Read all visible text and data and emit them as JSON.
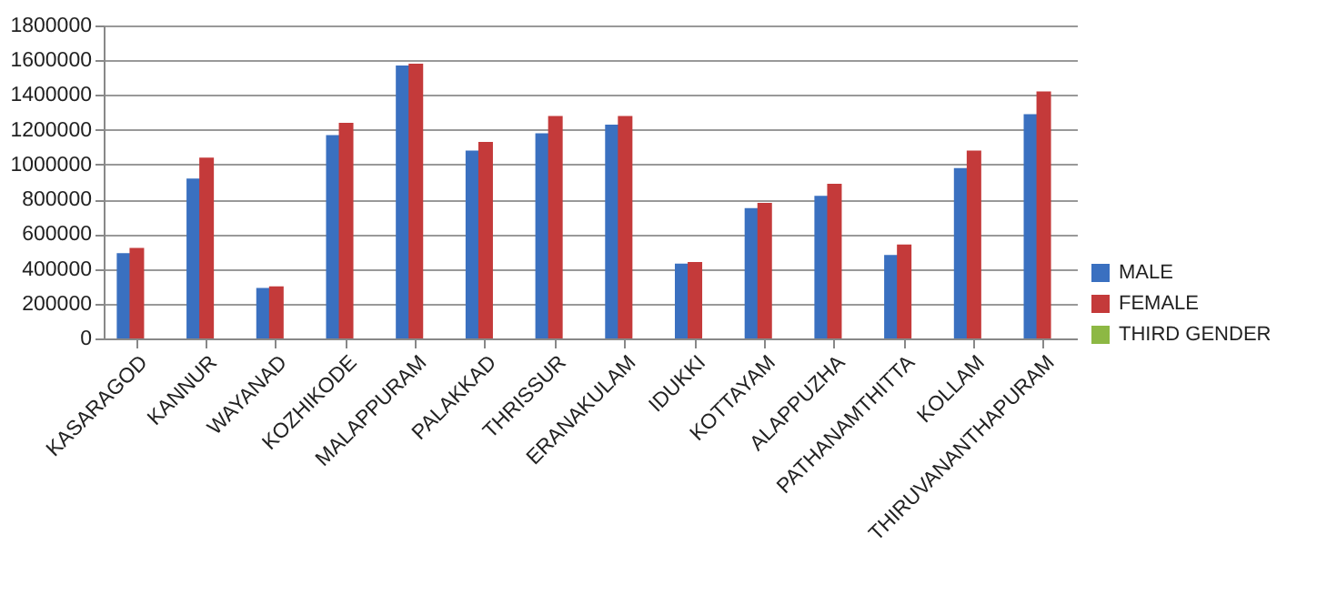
{
  "chart_data": {
    "type": "bar",
    "categories": [
      "KASARAGOD",
      "KANNUR",
      "WAYANAD",
      "KOZHIKODE",
      "MALAPPURAM",
      "PALAKKAD",
      "THRISSUR",
      "ERANAKULAM",
      "IDUKKI",
      "KOTTAYAM",
      "ALAPPUZHA",
      "PATHANAMTHITTA",
      "KOLLAM",
      "THIRUVANANTHAPURAM"
    ],
    "series": [
      {
        "name": "MALE",
        "color": "#3a70c0",
        "values": [
          490000,
          920000,
          290000,
          1170000,
          1570000,
          1080000,
          1180000,
          1230000,
          430000,
          750000,
          820000,
          480000,
          980000,
          1290000
        ]
      },
      {
        "name": "FEMALE",
        "color": "#c43a3a",
        "values": [
          520000,
          1040000,
          300000,
          1240000,
          1580000,
          1130000,
          1280000,
          1280000,
          440000,
          780000,
          890000,
          540000,
          1080000,
          1420000
        ]
      },
      {
        "name": "THIRD GENDER",
        "color": "#8db844",
        "values": [
          0,
          0,
          0,
          0,
          0,
          0,
          0,
          0,
          0,
          0,
          0,
          0,
          0,
          0
        ]
      }
    ],
    "ylim": [
      0,
      1800000
    ],
    "yticks": [
      0,
      200000,
      400000,
      600000,
      800000,
      1000000,
      1200000,
      1400000,
      1600000,
      1800000
    ],
    "grid": "y",
    "legend": "right"
  }
}
